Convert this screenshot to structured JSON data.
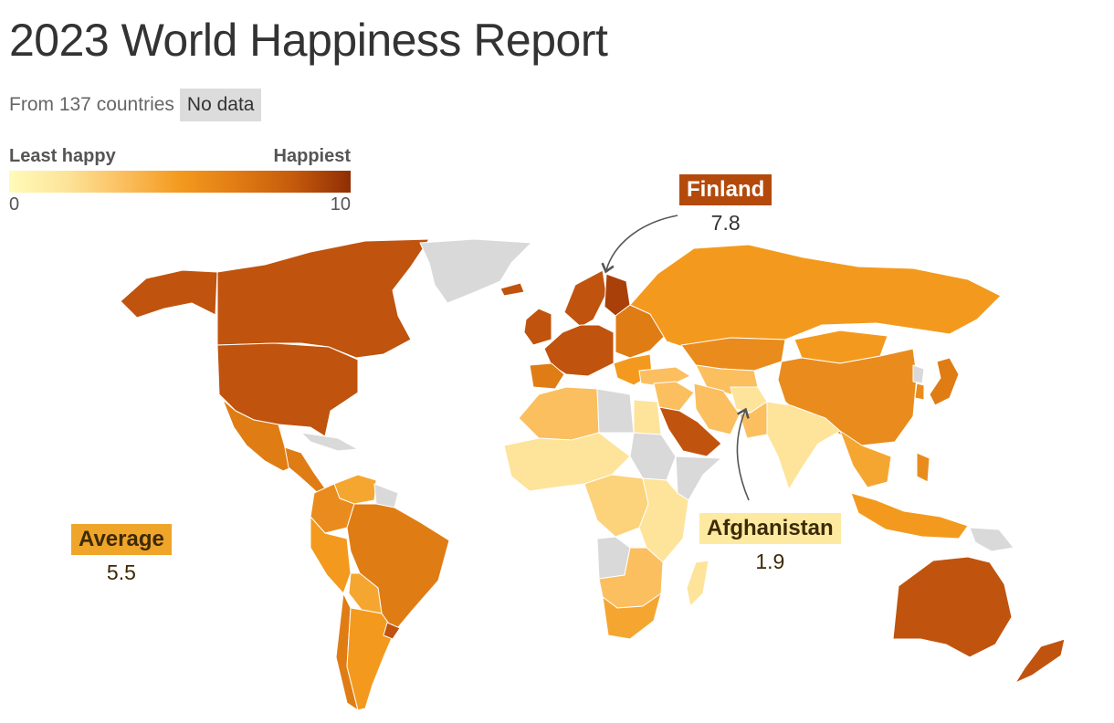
{
  "title": "2023 World Happiness Report",
  "subtitle": "From 137 countries",
  "no_data_label": "No data",
  "legend": {
    "left_label": "Least happy",
    "right_label": "Happiest",
    "min": "0",
    "max": "10",
    "colors": [
      "#fffbb8",
      "#fde49a",
      "#fbbf5f",
      "#f39a1e",
      "#e07c14",
      "#c55a0c",
      "#8f2e04"
    ]
  },
  "colors": {
    "no_data": "#d9d9d9",
    "border": "#ffffff",
    "text_dark": "#333333"
  },
  "callouts": {
    "finland": {
      "name": "Finland",
      "value": "7.8"
    },
    "afghanistan": {
      "name": "Afghanistan",
      "value": "1.9"
    },
    "average": {
      "name": "Average",
      "value": "5.5"
    }
  },
  "regions": {
    "canada": "#c0530e",
    "usa": "#c0530e",
    "alaska": "#c0530e",
    "greenland": "#d9d9d9",
    "iceland": "#c0530e",
    "mexico": "#e07c14",
    "central_america": "#e07c14",
    "caribbean": "#d9d9d9",
    "venezuela": "#f5a631",
    "colombia": "#e98c1d",
    "brazil": "#e07c14",
    "peru": "#f39a1e",
    "bolivia": "#f5a631",
    "chile": "#e07c14",
    "argentina": "#f39a1e",
    "uruguay": "#c0530e",
    "guianas": "#d9d9d9",
    "uk_ireland": "#c0530e",
    "scandinavia": "#c0530e",
    "finland": "#a9400a",
    "western_europe": "#c0530e",
    "iberia": "#e07c14",
    "eastern_europe": "#e07c14",
    "balkans": "#f39a1e",
    "russia": "#f39a1e",
    "turkey": "#fbbf5f",
    "kazakhstan": "#e98c1d",
    "central_asia": "#fbbf5f",
    "mongolia": "#f39a1e",
    "china": "#e98c1d",
    "north_korea": "#d9d9d9",
    "korea": "#e98c1d",
    "japan": "#e07c14",
    "middle_east": "#fbbf5f",
    "saudi_arabia": "#c0530e",
    "iran": "#fbbf5f",
    "afghanistan": "#fde49a",
    "pakistan": "#fbbf5f",
    "india": "#fde49a",
    "se_asia": "#f5a631",
    "indonesia": "#f39a1e",
    "philippines": "#e98c1d",
    "png": "#d9d9d9",
    "australia": "#c0530e",
    "new_zealand": "#c0530e",
    "north_africa": "#fbbf5f",
    "libya": "#d9d9d9",
    "egypt": "#fde49a",
    "sudan": "#d9d9d9",
    "west_africa": "#fde49a",
    "central_africa": "#fcd27a",
    "east_africa": "#fde49a",
    "horn_somalia": "#d9d9d9",
    "southern_africa": "#fbbf5f",
    "south_africa": "#f5a631",
    "angola": "#d9d9d9",
    "madagascar": "#fde49a"
  }
}
